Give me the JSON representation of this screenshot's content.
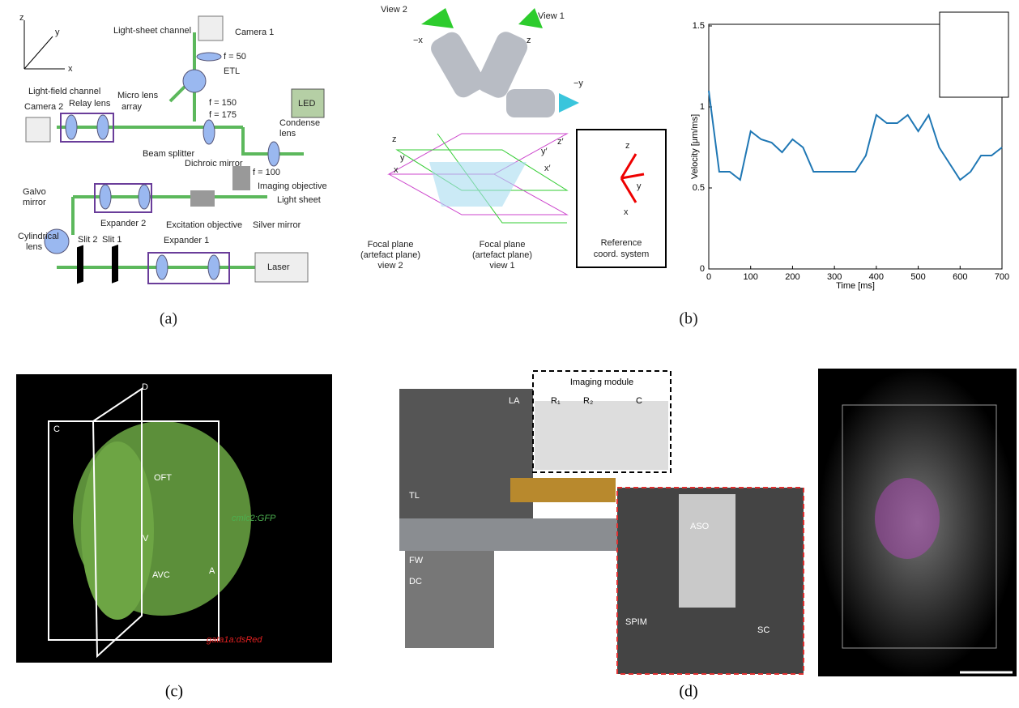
{
  "panels": {
    "a": {
      "caption": "(a)",
      "labels": [
        "z",
        "y",
        "x",
        "Light-sheet channel",
        "Camera 1",
        "f = 50",
        "ETL",
        "Light-field channel",
        "Relay lens",
        "Micro lens",
        "array",
        "Camera 2",
        "f = 150",
        "f = 175",
        "LED",
        "Condense",
        "lens",
        "Beam splitter",
        "Dichroic mirror",
        "f = 100",
        "Imaging objective",
        "Light sheet",
        "Galvo",
        "mirror",
        "Expander 2",
        "Excitation objective",
        "Silver mirror",
        "Cylindrical",
        "lens",
        "Slit 2",
        "Slit 1",
        "Expander 1",
        "Laser"
      ]
    },
    "b": {
      "caption": "(b)",
      "labels": [
        "View 2",
        "View 1",
        "−x",
        "z",
        "−y",
        "z",
        "y",
        "x",
        "z′",
        "y′",
        "x′",
        "Focal plane",
        "(artefact plane)",
        "view 2",
        "Focal plane",
        "(artefact plane)",
        "view 1",
        "z",
        "y",
        "x",
        "Reference",
        "coord. system"
      ],
      "chart_data": {
        "type": "line",
        "y_label": "Velocity [μm/ms]",
        "x_label": "Time [ms]",
        "xlim": [
          0,
          700
        ],
        "ylim": [
          0,
          1.5
        ],
        "xticks": [
          0,
          100,
          200,
          300,
          400,
          500,
          600,
          700
        ],
        "yticks": [
          0,
          0.5,
          1,
          1.5
        ],
        "x": [
          0,
          25,
          50,
          75,
          100,
          125,
          150,
          175,
          200,
          225,
          250,
          275,
          300,
          325,
          350,
          375,
          400,
          425,
          450,
          475,
          500,
          525,
          550,
          575,
          600,
          625,
          650,
          675,
          700
        ],
        "series": [
          {
            "color": "#1f77b4",
            "values": [
              1.1,
              0.6,
              0.6,
              0.55,
              0.85,
              0.8,
              0.78,
              0.72,
              0.8,
              0.75,
              0.6,
              0.6,
              0.6,
              0.6,
              0.6,
              0.7,
              0.95,
              0.9,
              0.9,
              0.95,
              0.85,
              0.95,
              0.75,
              0.65,
              0.55,
              0.6,
              0.7,
              0.7,
              0.75
            ]
          }
        ]
      }
    },
    "c": {
      "caption": "(c)",
      "labels": [
        "C",
        "D",
        "OFT",
        "V",
        "AVC",
        "A",
        "cmlc2:GFP",
        "gata1a:dsRed"
      ]
    },
    "d": {
      "caption": "(d)",
      "labels": [
        "Imaging module",
        "LA",
        "R₁",
        "R₂",
        "C",
        "TL",
        "FW",
        "DC",
        "ASO",
        "SPIM",
        "SC"
      ]
    }
  }
}
